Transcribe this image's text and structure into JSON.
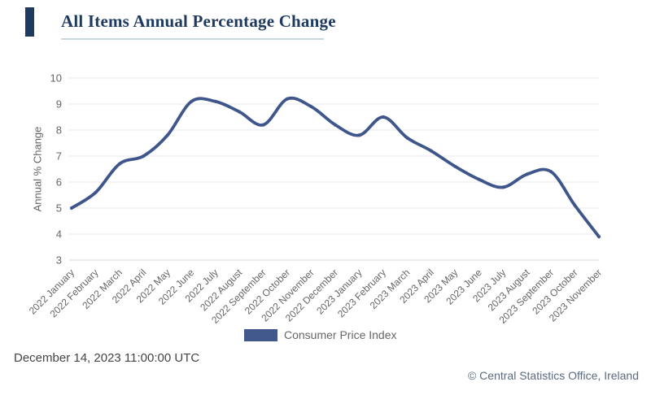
{
  "title": "All Items Annual Percentage Change",
  "chart_data": {
    "type": "line",
    "title": "All Items Annual Percentage Change",
    "categories": [
      "2022 January",
      "2022 February",
      "2022 March",
      "2022 April",
      "2022 May",
      "2022 June",
      "2022 July",
      "2022 August",
      "2022 September",
      "2022 October",
      "2022 November",
      "2022 December",
      "2023 January",
      "2023 February",
      "2023 March",
      "2023 April",
      "2023 May",
      "2023 June",
      "2023 July",
      "2023 August",
      "2023 September",
      "2023 October",
      "2023 November"
    ],
    "series": [
      {
        "name": "Consumer Price Index",
        "values": [
          5.0,
          5.6,
          6.7,
          7.0,
          7.8,
          9.1,
          9.1,
          8.7,
          8.2,
          9.2,
          8.9,
          8.2,
          7.8,
          8.5,
          7.7,
          7.2,
          6.6,
          6.1,
          5.8,
          6.3,
          6.4,
          5.1,
          3.9
        ]
      }
    ],
    "xlabel": "",
    "ylabel": "Annual % Change",
    "ylim": [
      3,
      10
    ],
    "yticks": [
      10,
      9,
      8,
      7,
      6,
      5,
      4,
      3
    ],
    "grid": "horizontal",
    "legend_position": "bottom",
    "line_color": "#3e568c",
    "marker": "dot"
  },
  "legend": {
    "label": "Consumer Price Index",
    "swatch_color": "#41588c"
  },
  "footer": {
    "timestamp": "December 14, 2023 11:00:00 UTC",
    "copyright": "© Central Statistics Office, Ireland"
  },
  "colors": {
    "title_navy": "#1e3a5f",
    "title_rule": "#ccd6de",
    "gridline": "#e8e8e8",
    "axis_line": "#d5d5d5",
    "tick_label": "#666666",
    "copyright_blue": "#5a6b80"
  }
}
